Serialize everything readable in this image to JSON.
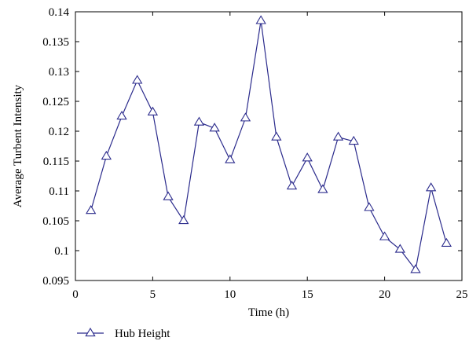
{
  "chart_data": {
    "type": "line",
    "title": "",
    "xlabel": "Time (h)",
    "ylabel": "Average Turbent Intensity",
    "xlim": [
      0,
      25
    ],
    "ylim": [
      0.095,
      0.14
    ],
    "x_ticks": [
      0,
      5,
      10,
      15,
      20,
      25
    ],
    "x_tick_labels": [
      "0",
      "5",
      "10",
      "15",
      "20",
      "25"
    ],
    "y_ticks": [
      0.095,
      0.1,
      0.105,
      0.11,
      0.115,
      0.12,
      0.125,
      0.13,
      0.135,
      0.14
    ],
    "y_tick_labels": [
      "0.095",
      "0.1",
      "0.105",
      "0.11",
      "0.115",
      "0.12",
      "0.125",
      "0.13",
      "0.135",
      "0.14"
    ],
    "grid": false,
    "legend_position": "bottom-left",
    "series": [
      {
        "name": "Hub Height",
        "color": "#2b2b8c",
        "marker": "triangle",
        "x": [
          1,
          2,
          3,
          4,
          5,
          6,
          7,
          8,
          9,
          10,
          11,
          12,
          13,
          14,
          15,
          16,
          17,
          18,
          19,
          20,
          21,
          22,
          23,
          24
        ],
        "values": [
          0.1067,
          0.1158,
          0.1225,
          0.1285,
          0.1232,
          0.109,
          0.105,
          0.1215,
          0.1205,
          0.1152,
          0.1222,
          0.1385,
          0.119,
          0.1108,
          0.1155,
          0.1102,
          0.119,
          0.1183,
          0.1072,
          0.1023,
          0.1002,
          0.0968,
          0.1105,
          0.1012
        ]
      }
    ]
  }
}
